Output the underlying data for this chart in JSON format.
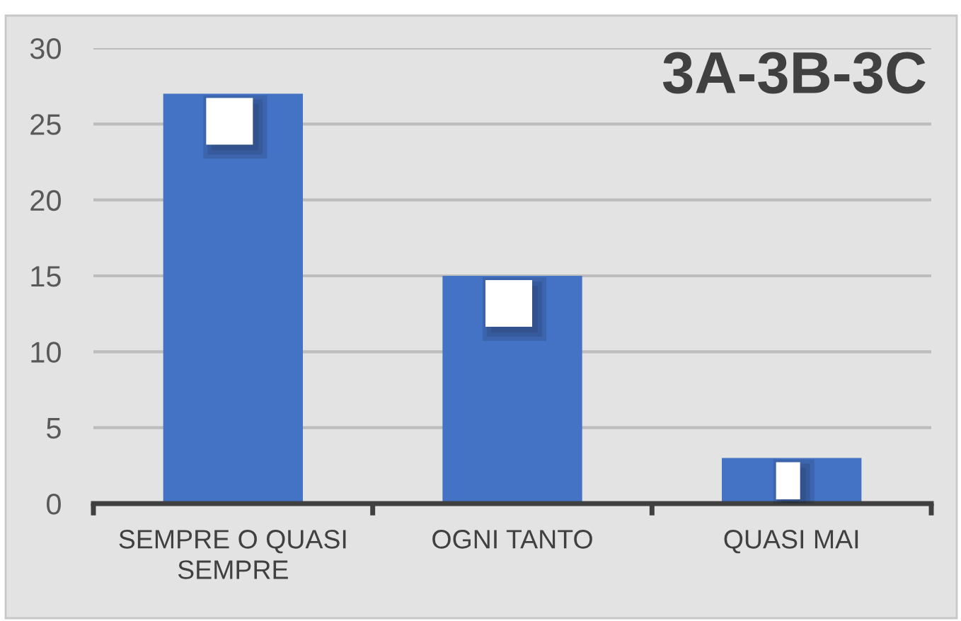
{
  "chart_data": {
    "type": "bar",
    "title": "3A-3B-3C",
    "categories": [
      "SEMPRE O QUASI SEMPRE",
      "OGNI TANTO",
      "QUASI MAI"
    ],
    "values": [
      27,
      15,
      3
    ],
    "color": "#4472c4",
    "ylim": [
      0,
      30
    ],
    "yticks": [
      0,
      5,
      10,
      15,
      20,
      25,
      30
    ],
    "grid": "y"
  }
}
